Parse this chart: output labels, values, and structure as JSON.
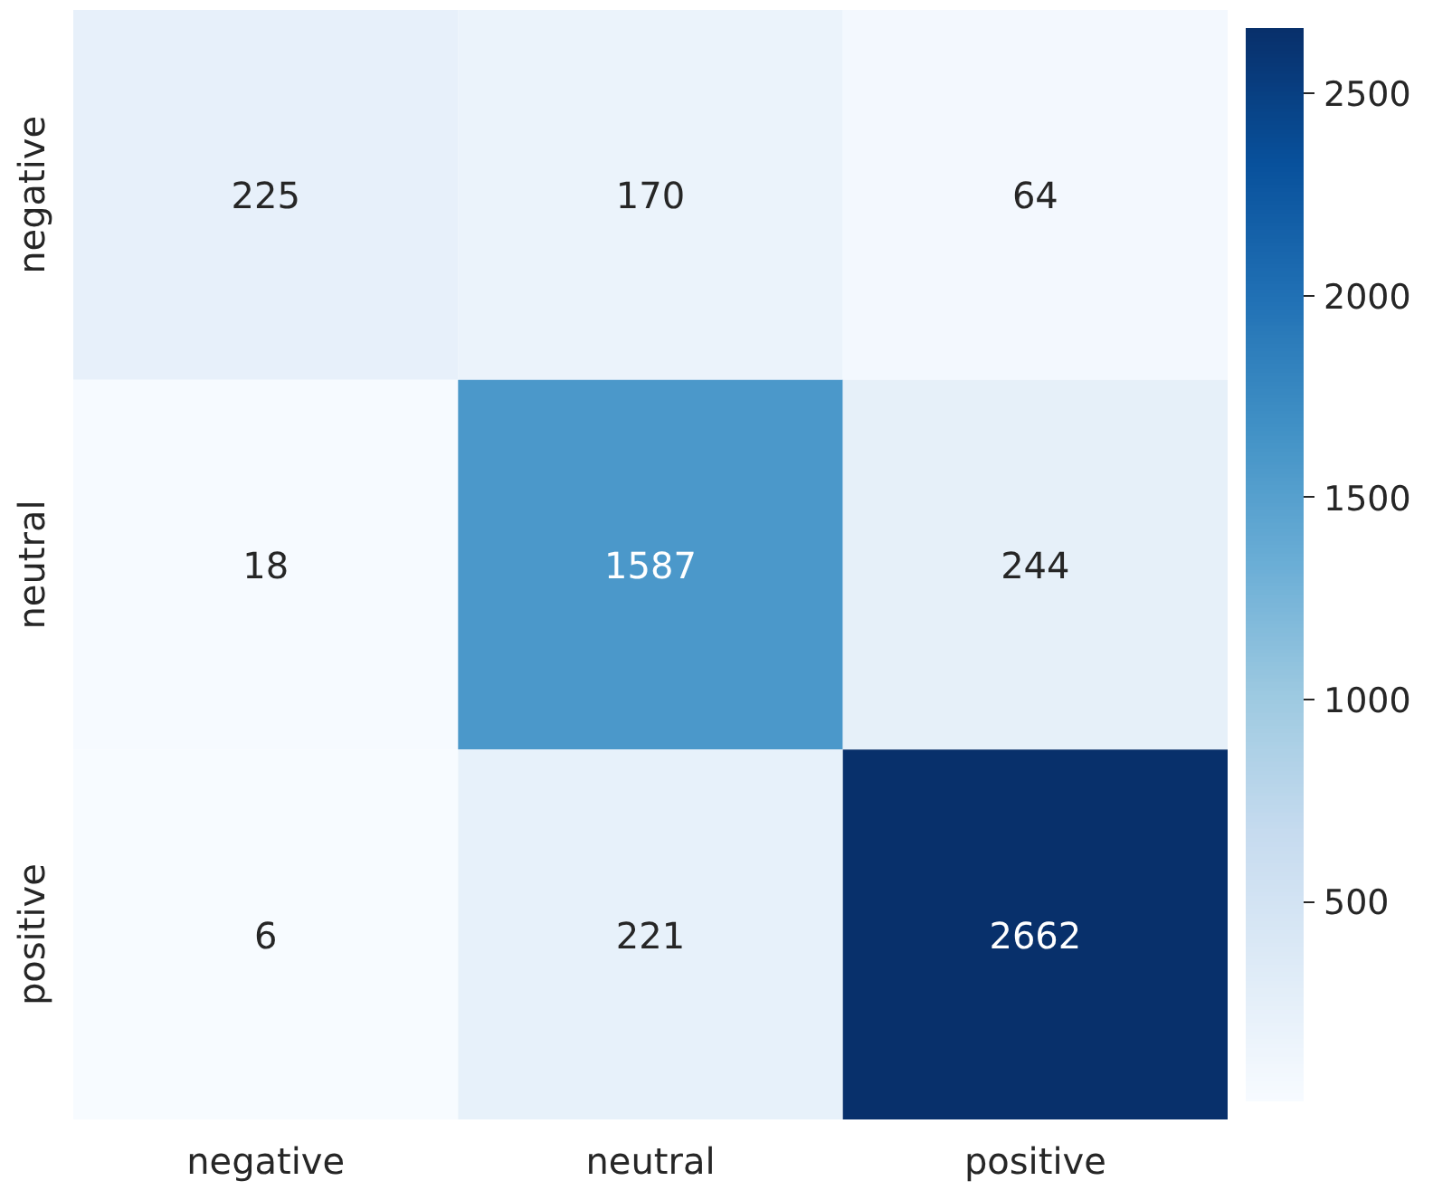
{
  "chart_data": {
    "type": "heatmap",
    "categories": [
      "negative",
      "neutral",
      "positive"
    ],
    "y_categories": [
      "negative",
      "neutral",
      "positive"
    ],
    "cells": [
      [
        225,
        170,
        64
      ],
      [
        18,
        1587,
        244
      ],
      [
        6,
        221,
        2662
      ]
    ],
    "clim": [
      6,
      2662
    ],
    "cticks": [
      500,
      1000,
      1500,
      2000,
      2500
    ],
    "data_labels": true
  }
}
